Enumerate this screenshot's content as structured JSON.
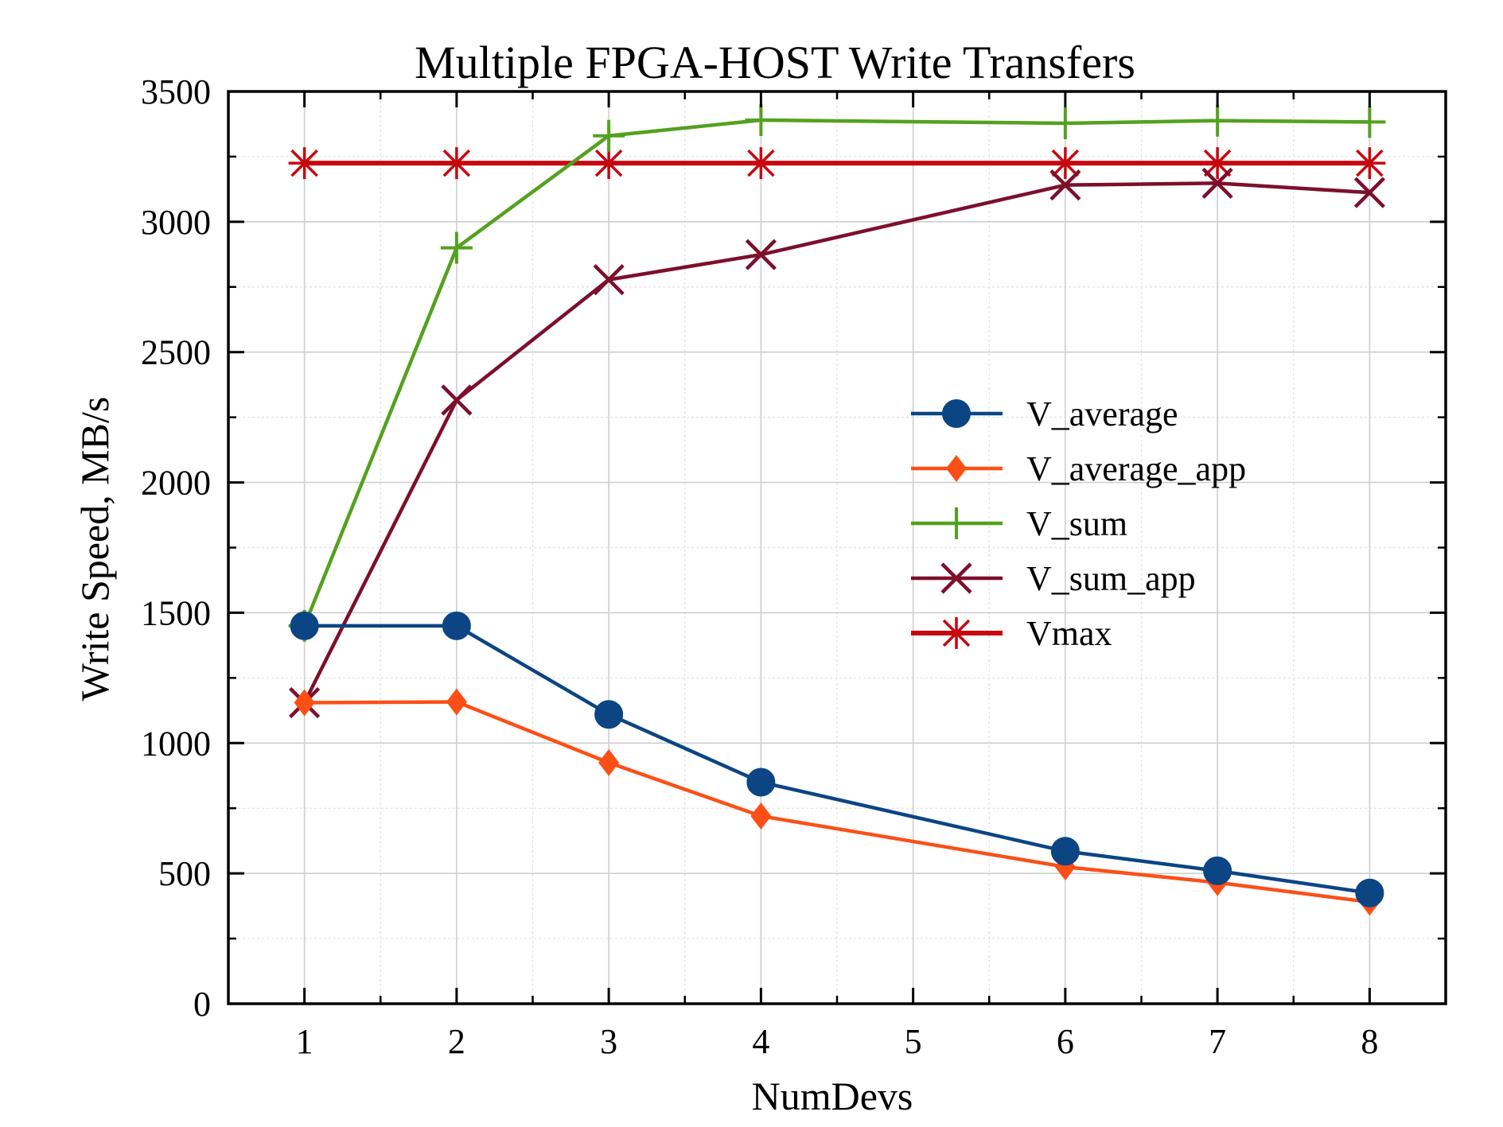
{
  "chart_data": {
    "type": "line",
    "title": "Multiple FPGA-HOST Write Transfers",
    "xlabel": "NumDevs",
    "ylabel": "Write Speed, MB/s",
    "xlim": [
      0.5,
      8.5
    ],
    "ylim": [
      0,
      3500
    ],
    "xticks": [
      1,
      2,
      3,
      4,
      5,
      6,
      7,
      8
    ],
    "yticks": [
      0,
      500,
      1000,
      1500,
      2000,
      2500,
      3000,
      3500
    ],
    "grid": true,
    "legend_position": "right",
    "x": [
      1,
      2,
      3,
      4,
      6,
      7,
      8
    ],
    "series": [
      {
        "name": "V_average",
        "color": "#0b4584",
        "marker": "circle",
        "values": [
          1450,
          1450,
          1110,
          850,
          585,
          510,
          425
        ]
      },
      {
        "name": "V_average_app",
        "color": "#fc4f17",
        "marker": "diamond",
        "values": [
          1155,
          1158,
          925,
          720,
          525,
          465,
          390
        ]
      },
      {
        "name": "V_sum",
        "color": "#54a11f",
        "marker": "plus",
        "values": [
          1450,
          2900,
          3330,
          3390,
          3378,
          3388,
          3383
        ]
      },
      {
        "name": "V_sum_app",
        "color": "#7d0f2c",
        "marker": "x",
        "values": [
          1155,
          2316,
          2778,
          2874,
          3141,
          3148,
          3112
        ]
      },
      {
        "name": "Vmax",
        "color": "#c8060e",
        "marker": "star",
        "values": [
          3225,
          3225,
          3225,
          3225,
          3225,
          3225,
          3225
        ]
      }
    ]
  }
}
